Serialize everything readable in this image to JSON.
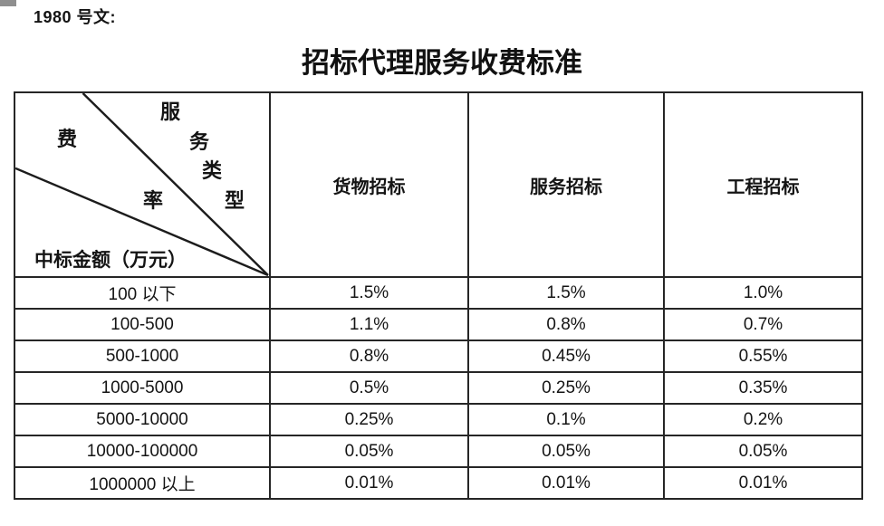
{
  "doc_label": "1980 号文:",
  "title": "招标代理服务收费标准",
  "table": {
    "corner": {
      "type_chars": [
        "服",
        "务",
        "类",
        "型"
      ],
      "rate_chars": [
        "费",
        "率"
      ],
      "bottom_label": "中标金额（万元）"
    },
    "columns": [
      "货物招标",
      "服务招标",
      "工程招标"
    ],
    "rows": [
      {
        "range": "100 以下",
        "values": [
          "1.5%",
          "1.5%",
          "1.0%"
        ]
      },
      {
        "range": "100-500",
        "values": [
          "1.1%",
          "0.8%",
          "0.7%"
        ]
      },
      {
        "range": "500-1000",
        "values": [
          "0.8%",
          "0.45%",
          "0.55%"
        ]
      },
      {
        "range": "1000-5000",
        "values": [
          "0.5%",
          "0.25%",
          "0.35%"
        ]
      },
      {
        "range": "5000-10000",
        "values": [
          "0.25%",
          "0.1%",
          "0.2%"
        ]
      },
      {
        "range": "10000-100000",
        "values": [
          "0.05%",
          "0.05%",
          "0.05%"
        ]
      },
      {
        "range": "1000000 以上",
        "values": [
          "0.01%",
          "0.01%",
          "0.01%"
        ]
      }
    ]
  },
  "colors": {
    "text": "#141414",
    "grid_line": "#262626",
    "page_background": "#ffffff",
    "corner_artifact": "#8f8f8f"
  }
}
